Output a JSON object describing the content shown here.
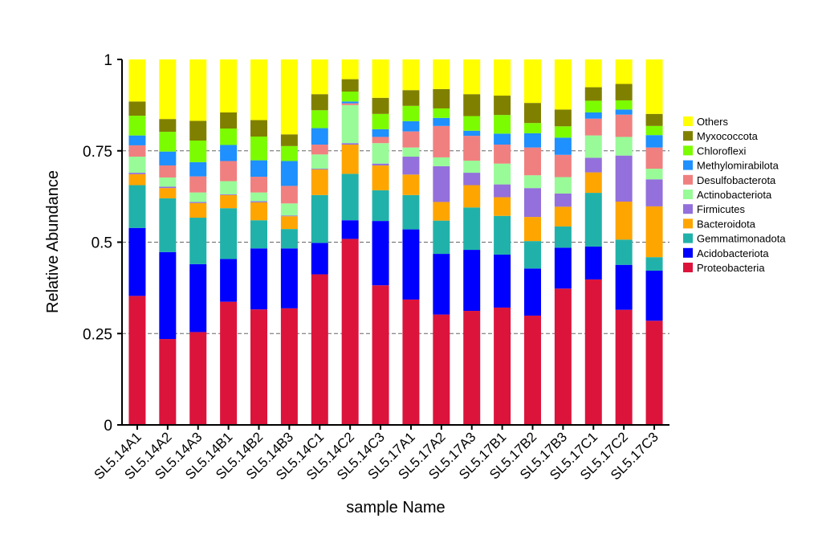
{
  "chart_data": {
    "type": "bar",
    "stacked": true,
    "xlabel": "sample Name",
    "ylabel": "Relative Abundance",
    "ylim": [
      0,
      1
    ],
    "yticks": [
      0,
      0.25,
      0.5,
      0.75,
      1
    ],
    "ytick_labels": [
      "0",
      "0.25",
      "0.5",
      "0.75",
      "1"
    ],
    "grid": "horizontal dashed at 0.25, 0.5, 0.75",
    "legend_position": "right",
    "categories": [
      "SL5.14A1",
      "SL5.14A2",
      "SL5.14A3",
      "SL5.14B1",
      "SL5.14B2",
      "SL5.14B3",
      "SL5.14C1",
      "SL5.14C2",
      "SL5.14C3",
      "SL5.17A1",
      "SL5.17A2",
      "SL5.17A3",
      "SL5.17B1",
      "SL5.17B2",
      "SL5.17B3",
      "SL5.17C1",
      "SL5.17C2",
      "SL5.17C3"
    ],
    "series": [
      {
        "name": "Proteobacteria",
        "color": "#dc143c",
        "values": [
          0.353,
          0.235,
          0.254,
          0.337,
          0.316,
          0.319,
          0.412,
          0.509,
          0.382,
          0.343,
          0.302,
          0.312,
          0.321,
          0.299,
          0.373,
          0.398,
          0.315,
          0.285
        ]
      },
      {
        "name": "Acidobacteriota",
        "color": "#0000ff",
        "values": [
          0.186,
          0.238,
          0.186,
          0.117,
          0.167,
          0.164,
          0.086,
          0.051,
          0.176,
          0.192,
          0.166,
          0.167,
          0.145,
          0.129,
          0.112,
          0.09,
          0.123,
          0.137
        ]
      },
      {
        "name": "Gemmatimonadota",
        "color": "#20b2aa",
        "values": [
          0.117,
          0.147,
          0.127,
          0.139,
          0.077,
          0.053,
          0.131,
          0.127,
          0.084,
          0.094,
          0.091,
          0.116,
          0.106,
          0.075,
          0.058,
          0.147,
          0.069,
          0.037
        ]
      },
      {
        "name": "Bacteroidota",
        "color": "#ffa500",
        "values": [
          0.03,
          0.028,
          0.04,
          0.036,
          0.049,
          0.035,
          0.07,
          0.08,
          0.068,
          0.056,
          0.051,
          0.061,
          0.051,
          0.066,
          0.054,
          0.056,
          0.104,
          0.139
        ]
      },
      {
        "name": "Firmicutes",
        "color": "#9370db",
        "values": [
          0.004,
          0.004,
          0.003,
          0.002,
          0.003,
          0.002,
          0.002,
          0.004,
          0.005,
          0.049,
          0.098,
          0.034,
          0.035,
          0.079,
          0.036,
          0.04,
          0.126,
          0.074
        ]
      },
      {
        "name": "Actinobacteriota",
        "color": "#98fb98",
        "values": [
          0.044,
          0.025,
          0.026,
          0.036,
          0.024,
          0.033,
          0.039,
          0.104,
          0.056,
          0.025,
          0.024,
          0.033,
          0.057,
          0.035,
          0.045,
          0.061,
          0.051,
          0.029
        ]
      },
      {
        "name": "Desulfobacterota",
        "color": "#f08080",
        "values": [
          0.031,
          0.033,
          0.044,
          0.055,
          0.043,
          0.048,
          0.027,
          0.005,
          0.017,
          0.044,
          0.086,
          0.068,
          0.052,
          0.076,
          0.061,
          0.046,
          0.061,
          0.058
        ]
      },
      {
        "name": "Methylomirabilota",
        "color": "#1e90ff",
        "values": [
          0.027,
          0.038,
          0.039,
          0.044,
          0.045,
          0.068,
          0.045,
          0.005,
          0.021,
          0.028,
          0.022,
          0.014,
          0.03,
          0.039,
          0.047,
          0.017,
          0.014,
          0.034
        ]
      },
      {
        "name": "Chloroflexi",
        "color": "#7cfc00",
        "values": [
          0.054,
          0.054,
          0.059,
          0.045,
          0.065,
          0.041,
          0.049,
          0.027,
          0.042,
          0.042,
          0.026,
          0.04,
          0.051,
          0.028,
          0.031,
          0.032,
          0.025,
          0.025
        ]
      },
      {
        "name": "Myxococcota",
        "color": "#808000",
        "values": [
          0.039,
          0.035,
          0.054,
          0.044,
          0.045,
          0.032,
          0.044,
          0.034,
          0.044,
          0.043,
          0.053,
          0.06,
          0.053,
          0.055,
          0.046,
          0.037,
          0.045,
          0.033
        ]
      },
      {
        "name": "Others",
        "color": "#ffff00",
        "values": [
          0.115,
          0.163,
          0.168,
          0.145,
          0.166,
          0.205,
          0.095,
          0.054,
          0.105,
          0.084,
          0.081,
          0.095,
          0.098,
          0.119,
          0.137,
          0.076,
          0.067,
          0.149
        ]
      }
    ]
  }
}
